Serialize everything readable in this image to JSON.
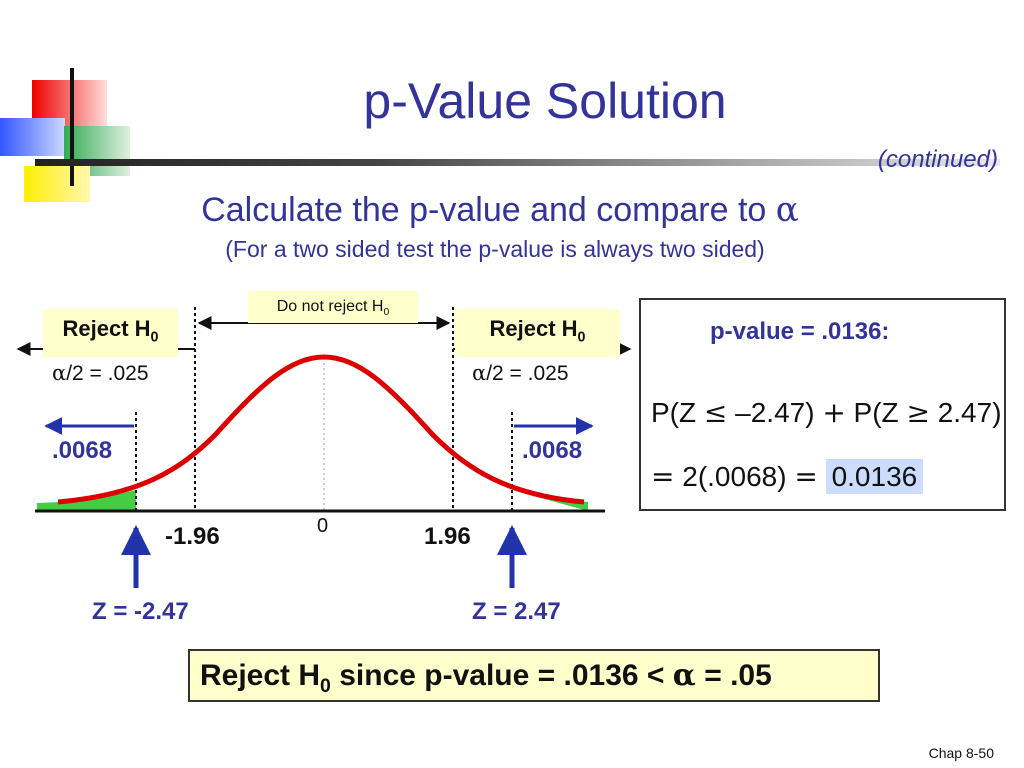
{
  "slide": {
    "title": "p-Value Solution",
    "continued": "(continued)",
    "heading_prefix": "Calculate the p-value and compare to ",
    "heading_symbol": "α",
    "subheading": "(For a two sided test the p-value is always two sided)",
    "footer": "Chap 8-50"
  },
  "diagram": {
    "reject_text": "Reject H",
    "reject_sub": "0",
    "do_not_reject_text": "Do not reject H",
    "do_not_reject_sub": "0",
    "alpha_half_symbol": "α",
    "alpha_half_value": "/2 = .025",
    "tail_area": ".0068",
    "critical_left": "-1.96",
    "critical_right": "1.96",
    "center": "0",
    "z_left": "Z = -2.47",
    "z_right": "Z = 2.47"
  },
  "pvalue_box": {
    "title": "p-value = .0136:",
    "eq1_a": "P(Z ",
    "eq1_op1": "≤",
    "eq1_b": " –2.47) ",
    "eq1_op2": "+",
    "eq1_c": " P(Z ",
    "eq1_op3": "≥",
    "eq1_d": " 2.47)",
    "eq2_op": "=",
    "eq2_a": " 2(.0068) ",
    "eq2_op2": "=",
    "eq2_result": "0.0136"
  },
  "conclusion": {
    "text_a": "Reject H",
    "sub": "0",
    "text_b": " since p-value = .0136 < ",
    "symbol": "α",
    "text_c": " = .05"
  },
  "colors": {
    "title": "#333399",
    "curve": "#dd0000",
    "tail_fill": "#44cc44",
    "arrow_blue": "#2233aa",
    "label_yellow": "#ffffcc",
    "highlight": "#ccdcff"
  }
}
